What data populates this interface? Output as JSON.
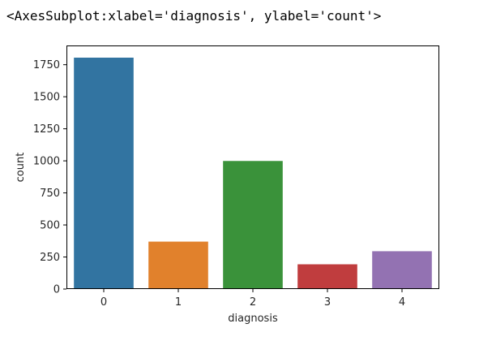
{
  "output": {
    "repr_text": "<AxesSubplot:xlabel='diagnosis', ylabel='count'>"
  },
  "chart_data": {
    "type": "bar",
    "categories": [
      "0",
      "1",
      "2",
      "3",
      "4"
    ],
    "values": [
      1805,
      370,
      999,
      193,
      295
    ],
    "colors": [
      "#3274a1",
      "#e1812c",
      "#3a923a",
      "#c03d3e",
      "#9372b2"
    ],
    "title": "",
    "xlabel": "diagnosis",
    "ylabel": "count",
    "ylim": [
      0,
      1900
    ],
    "yticks": [
      0,
      250,
      500,
      750,
      1000,
      1250,
      1500,
      1750
    ],
    "grid": false,
    "legend": "none"
  }
}
